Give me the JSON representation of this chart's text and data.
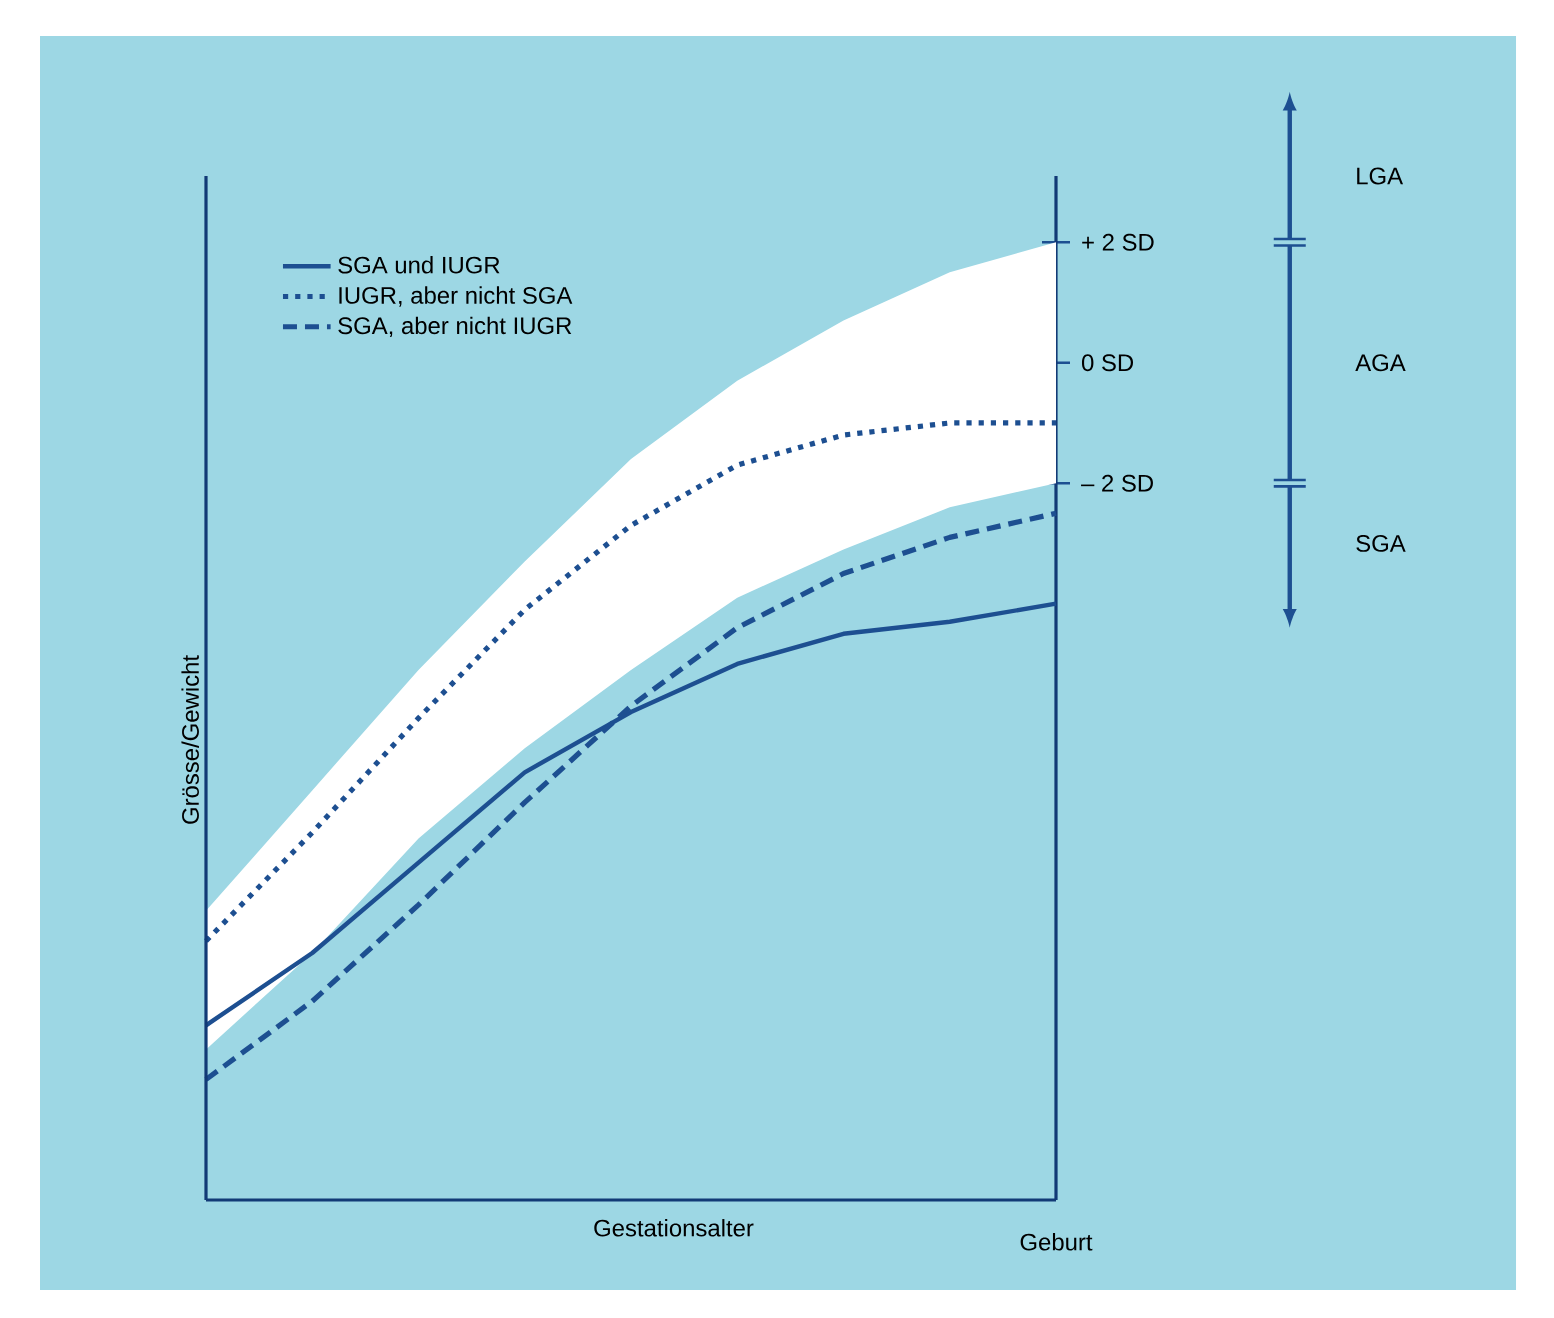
{
  "chart_data": {
    "type": "line",
    "categories": [
      null,
      null,
      null,
      null,
      null,
      null,
      null,
      null,
      "Geburt"
    ],
    "xlabel": "Gestationsalter",
    "ylabel": "Grösse/Gewicht",
    "ylim": [
      -13.9,
      3.1
    ],
    "yticks": [
      {
        "value": 2,
        "label": "+ 2 SD"
      },
      {
        "value": 0,
        "label": "0 SD"
      },
      {
        "value": -2,
        "label": "– 2 SD"
      }
    ],
    "series": [
      {
        "type": "area",
        "color": "#ffffff",
        "values": [
          null,
          null,
          null,
          null,
          null,
          null,
          null,
          null,
          null
        ],
        "upper": [
          -9.1,
          -7.1,
          -5.1,
          -3.3,
          -1.6,
          -0.3,
          0.7,
          1.5,
          2.0
        ],
        "lower": [
          -11.4,
          -9.8,
          -7.9,
          -6.4,
          -5.1,
          -3.9,
          -3.1,
          -2.4,
          -2.0
        ]
      },
      {
        "name": "SGA und IUGR",
        "color": "#1d4f91",
        "line_style": "solid",
        "values": [
          -11.0,
          -9.8,
          -8.3,
          -6.8,
          -5.8,
          -5.0,
          -4.5,
          -4.3,
          -4.0
        ]
      },
      {
        "name": "IUGR, aber nicht SGA",
        "color": "#1d4f91",
        "line_style": "dotted",
        "values": [
          -9.6,
          -7.8,
          -5.9,
          -4.1,
          -2.7,
          -1.7,
          -1.2,
          -1.0,
          -1.0
        ]
      },
      {
        "name": "SGA, aber nicht IUGR",
        "color": "#1d4f91",
        "line_style": "dashed",
        "values": [
          -11.9,
          -10.6,
          -9.0,
          -7.3,
          -5.7,
          -4.4,
          -3.5,
          -2.9,
          -2.5
        ]
      }
    ],
    "annotations": [
      "LGA",
      "AGA",
      "SGA"
    ],
    "legend": "top left",
    "grid": false,
    "marker": "none"
  }
}
